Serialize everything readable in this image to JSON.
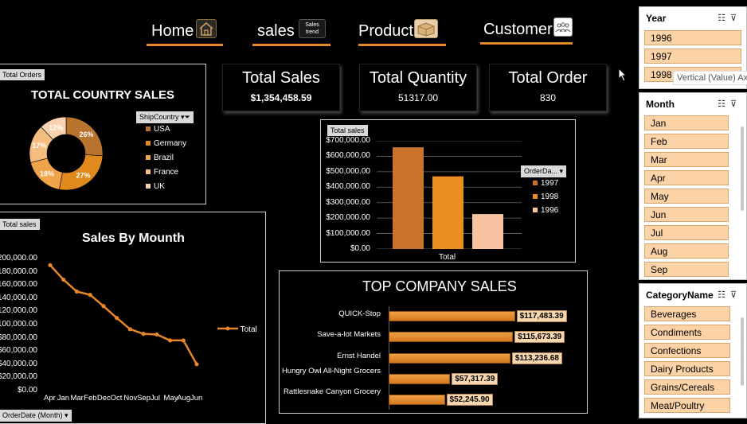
{
  "nav": {
    "home": "Home",
    "sales": "sales",
    "sales_icon_text": "Sales trend",
    "product": "Product",
    "customer": "Customer"
  },
  "kpis": {
    "total_sales": {
      "title": "Total Sales",
      "value": "$1,354,458.59"
    },
    "total_quantity": {
      "title": "Total Quantity",
      "value": "51317.00"
    },
    "total_order": {
      "title": "Total Order",
      "value": "830"
    }
  },
  "country_sales": {
    "tag": "Total Orders",
    "title": "TOTAL COUNTRY SALES",
    "filter_label": "ShipCountry",
    "slices": [
      {
        "name": "USA",
        "pct": 26,
        "label": "26%",
        "color": "#b8732e"
      },
      {
        "name": "Germany",
        "pct": 27,
        "label": "27%",
        "color": "#e08a1e"
      },
      {
        "name": "Brazil",
        "pct": 18,
        "label": "18%",
        "color": "#f1a34a"
      },
      {
        "name": "France",
        "pct": 17,
        "label": "17%",
        "color": "#f6bd80"
      },
      {
        "name": "UK",
        "pct": 12,
        "label": "12%",
        "color": "#f8d2b0"
      }
    ]
  },
  "year_chart": {
    "tag": "Total sales",
    "filter_label": "OrderDa...",
    "xlabel": "Total",
    "yticks": [
      "$700,000.00",
      "$600,000.00",
      "$500,000.00",
      "$400,000.00",
      "$300,000.00",
      "$200,000.00",
      "$100,000.00",
      "$0.00"
    ],
    "ylim": [
      0,
      700000
    ]
  },
  "monthly": {
    "tag": "Total sales",
    "title": "Sales By Mounth",
    "legend": "Total",
    "filter_label": "OrderDate (Month)",
    "yticks": [
      "$200,000.00",
      "$180,000.00",
      "$160,000.00",
      "$140,000.00",
      "$120,000.00",
      "$100,000.00",
      "$80,000.00",
      "$60,000.00",
      "$40,000.00",
      "$20,000.00",
      "$0.00"
    ]
  },
  "company": {
    "title": "TOP COMPANY SALES",
    "xmax": 120000
  },
  "chart_data": [
    {
      "type": "pie",
      "title": "TOTAL COUNTRY SALES",
      "categories": [
        "USA",
        "Germany",
        "Brazil",
        "France",
        "UK"
      ],
      "values": [
        26,
        27,
        18,
        17,
        12
      ]
    },
    {
      "type": "bar",
      "categories": [
        "Total"
      ],
      "series": [
        {
          "name": "1997",
          "values": [
            658000
          ],
          "color": "#c9742a"
        },
        {
          "name": "1998",
          "values": [
            470000
          ],
          "color": "#ec8d22"
        },
        {
          "name": "1996",
          "values": [
            226000
          ],
          "color": "#f8c3a0"
        }
      ],
      "xlabel": "Total",
      "ylim": [
        0,
        700000
      ]
    },
    {
      "type": "line",
      "title": "Sales By Mounth",
      "x": [
        "Apr",
        "Jan",
        "Mar",
        "Feb",
        "Dec",
        "Oct",
        "Nov",
        "Sep",
        "Jul",
        "May",
        "Aug",
        "Jun"
      ],
      "series": [
        {
          "name": "Total",
          "values": [
            190000,
            168000,
            150000,
            145000,
            128000,
            110000,
            93000,
            86000,
            85000,
            76000,
            76000,
            40000
          ]
        }
      ],
      "ylim": [
        0,
        200000
      ]
    },
    {
      "type": "bar",
      "orientation": "horizontal",
      "title": "TOP COMPANY SALES",
      "categories": [
        "QUICK-Stop",
        "Save-a-lot Markets",
        "Ernst Handel",
        "Hungry Owl All-Night Grocers",
        "Rattlesnake Canyon Grocery"
      ],
      "values": [
        117483.39,
        115673.39,
        113236.68,
        57317.39,
        52245.9
      ],
      "labels": [
        "$117,483.39",
        "$115,673.39",
        "$113,236.68",
        "$57,317.39",
        "$52,245.90"
      ]
    }
  ],
  "slicers": {
    "year": {
      "title": "Year",
      "items": [
        "1996",
        "1997",
        "1998"
      ],
      "tooltip": "Vertical (Value) Ax"
    },
    "month": {
      "title": "Month",
      "items": [
        "Jan",
        "Feb",
        "Mar",
        "Apr",
        "May",
        "Jun",
        "Jul",
        "Aug",
        "Sep"
      ]
    },
    "category": {
      "title": "CategoryName",
      "items": [
        "Beverages",
        "Condiments",
        "Confections",
        "Dairy Products",
        "Grains/Cereals",
        "Meat/Poultry"
      ]
    }
  }
}
